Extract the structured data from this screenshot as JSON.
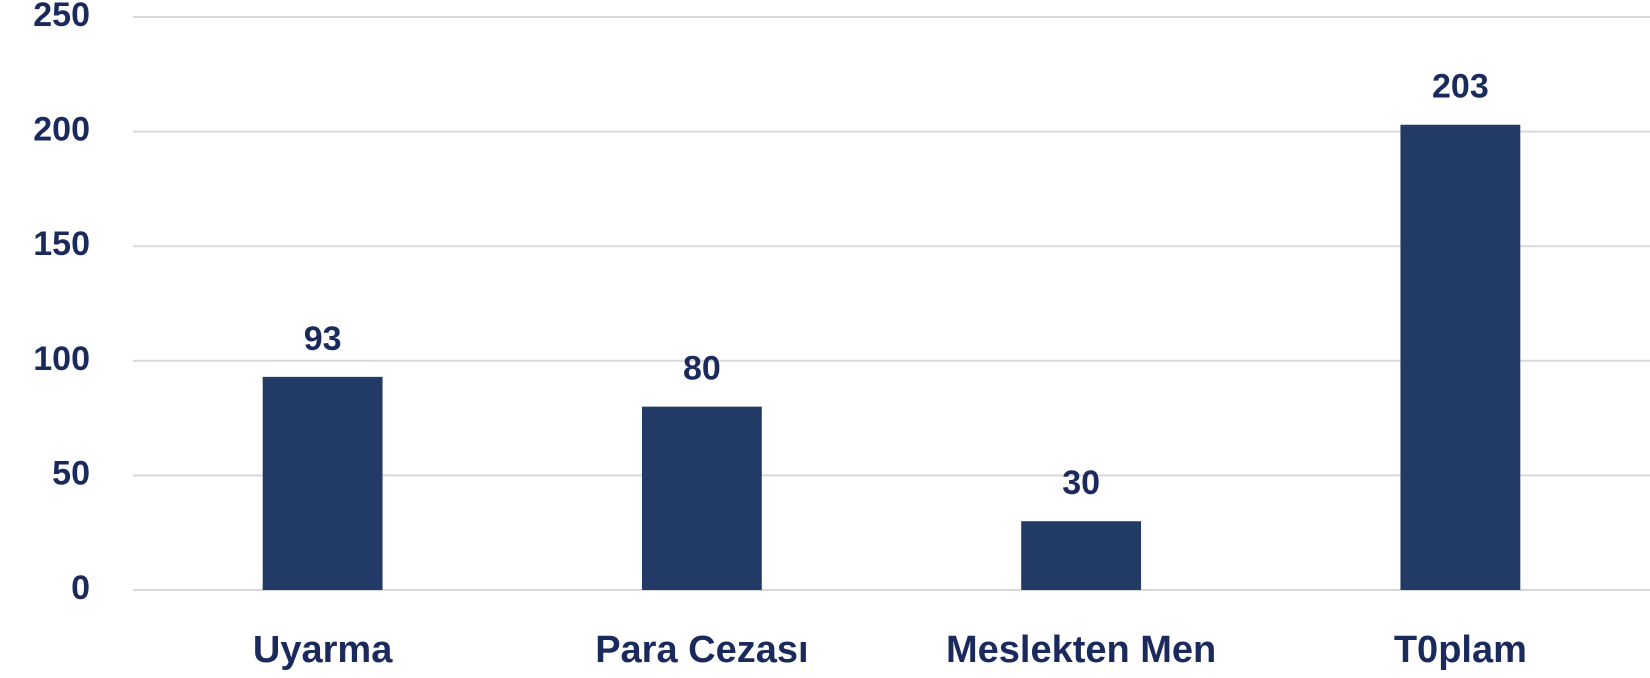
{
  "chart_data": {
    "type": "bar",
    "categories": [
      "Uyarma",
      "Para Cezası",
      "Meslekten Men",
      "T0plam"
    ],
    "values": [
      93,
      80,
      30,
      203
    ],
    "color": "#223a66",
    "ylim": [
      0,
      250
    ],
    "yticks": [
      0,
      50,
      100,
      150,
      200,
      250
    ],
    "grid": true
  }
}
